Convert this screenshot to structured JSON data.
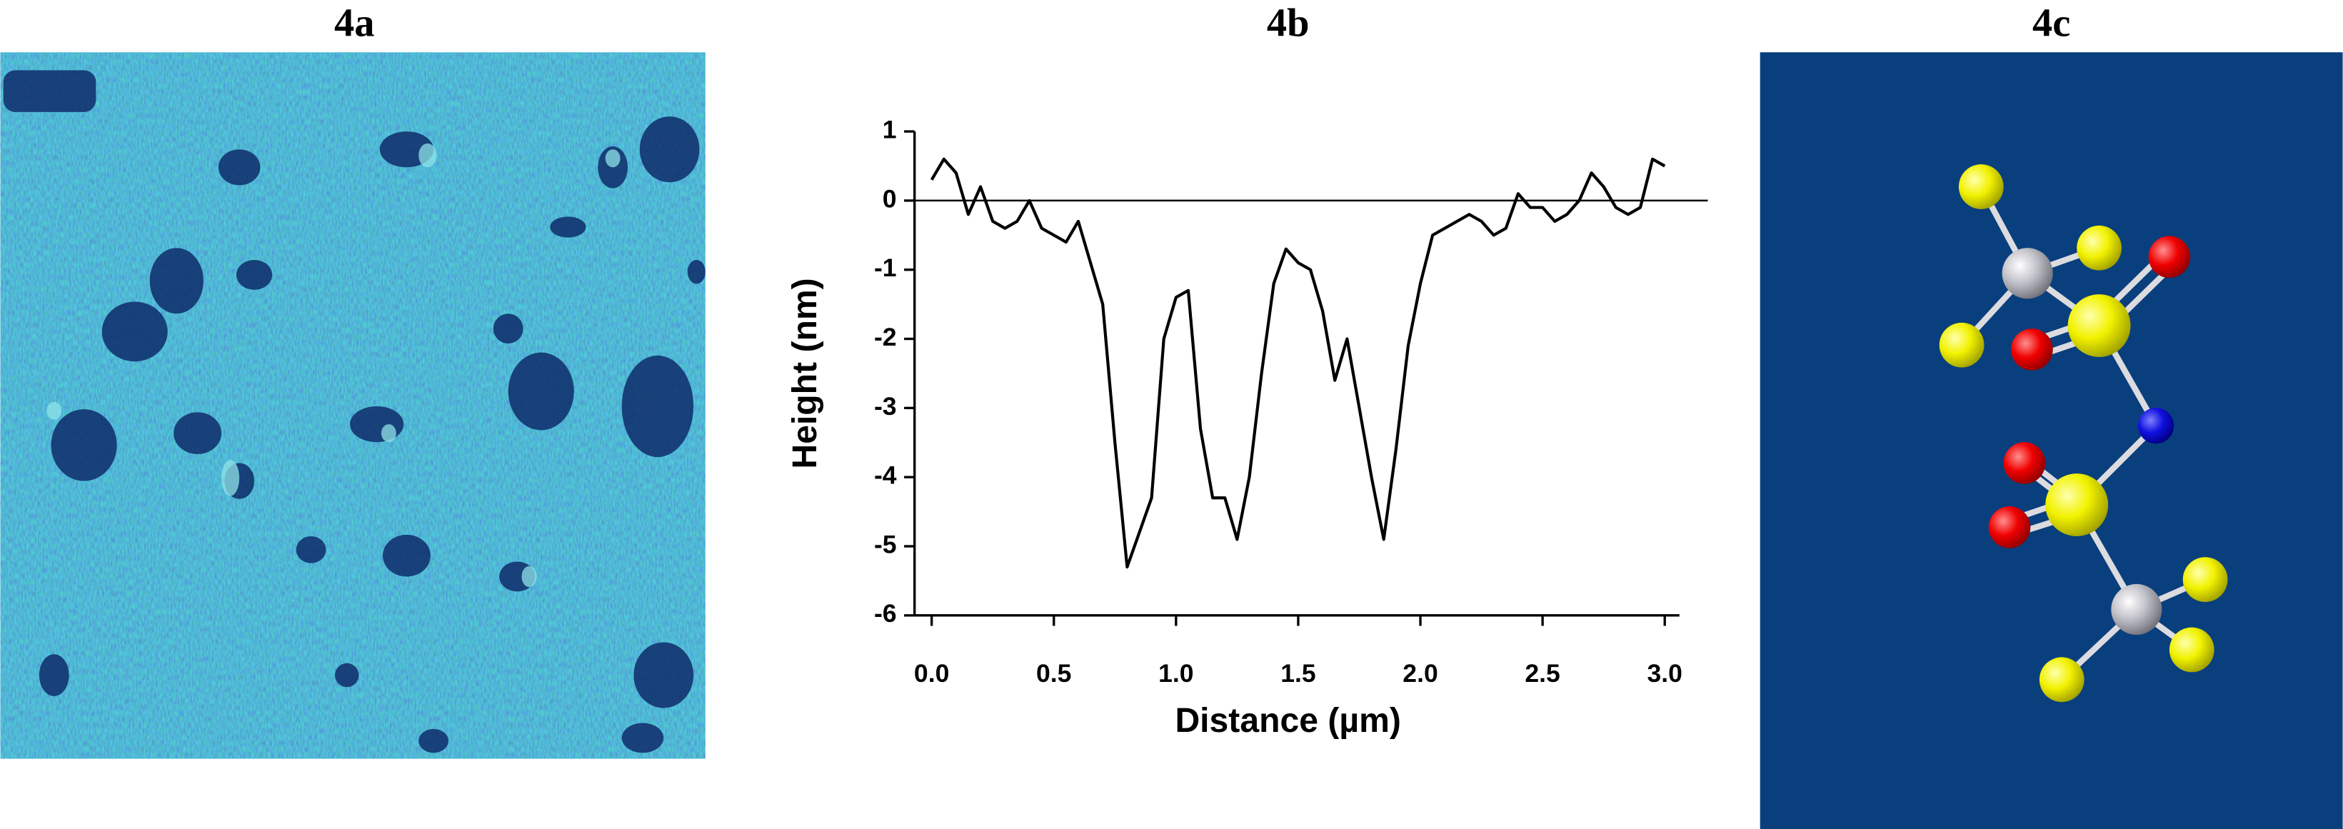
{
  "panel_labels": [
    "4a",
    "4c"
  ],
  "chart_data": {
    "type": "line",
    "title": "4b",
    "xlabel": "Distance (µm)",
    "ylabel": "Height (nm)",
    "x": [
      0.0,
      0.05,
      0.1,
      0.15,
      0.2,
      0.25,
      0.3,
      0.35,
      0.4,
      0.45,
      0.5,
      0.55,
      0.6,
      0.65,
      0.7,
      0.75,
      0.8,
      0.85,
      0.9,
      0.95,
      1.0,
      1.05,
      1.1,
      1.15,
      1.2,
      1.25,
      1.3,
      1.35,
      1.4,
      1.45,
      1.5,
      1.55,
      1.6,
      1.65,
      1.7,
      1.75,
      1.8,
      1.85,
      1.9,
      1.95,
      2.0,
      2.05,
      2.1,
      2.15,
      2.2,
      2.25,
      2.3,
      2.35,
      2.4,
      2.45,
      2.5,
      2.55,
      2.6,
      2.65,
      2.7,
      2.75,
      2.8,
      2.85,
      2.9,
      2.95,
      3.0
    ],
    "series": [
      {
        "name": null,
        "color": "#000000",
        "values": [
          0.3,
          0.6,
          0.4,
          -0.2,
          0.2,
          -0.3,
          -0.4,
          -0.3,
          0.0,
          -0.4,
          -0.5,
          -0.6,
          -0.3,
          -0.9,
          -1.5,
          -3.5,
          -5.3,
          -4.8,
          -4.3,
          -2.0,
          -1.4,
          -1.3,
          -3.3,
          -4.3,
          -4.3,
          -4.9,
          -4.0,
          -2.5,
          -1.2,
          -0.7,
          -0.9,
          -1.0,
          -1.6,
          -2.6,
          -2.0,
          -3.0,
          -4.0,
          -4.9,
          -3.6,
          -2.1,
          -1.2,
          -0.5,
          -0.4,
          -0.3,
          -0.2,
          -0.3,
          -0.5,
          -0.4,
          0.1,
          -0.1,
          -0.1,
          -0.3,
          -0.2,
          0.0,
          0.4,
          0.2,
          -0.1,
          -0.2,
          -0.1,
          0.6,
          0.5
        ]
      }
    ],
    "xlim": [
      -0.07,
      3.06
    ],
    "ylim": [
      -6,
      1
    ],
    "xticks": [
      {
        "value": 0,
        "label": "0.0"
      },
      0.5,
      {
        "value": 1,
        "label": "1.0"
      },
      1.5,
      {
        "value": 2,
        "label": "2.0"
      },
      2.5,
      {
        "value": 3,
        "label": "3.0"
      }
    ],
    "yticks": [
      -6,
      -5,
      -4,
      -3,
      -2,
      -1,
      0,
      1
    ],
    "hline": 0
  }
}
